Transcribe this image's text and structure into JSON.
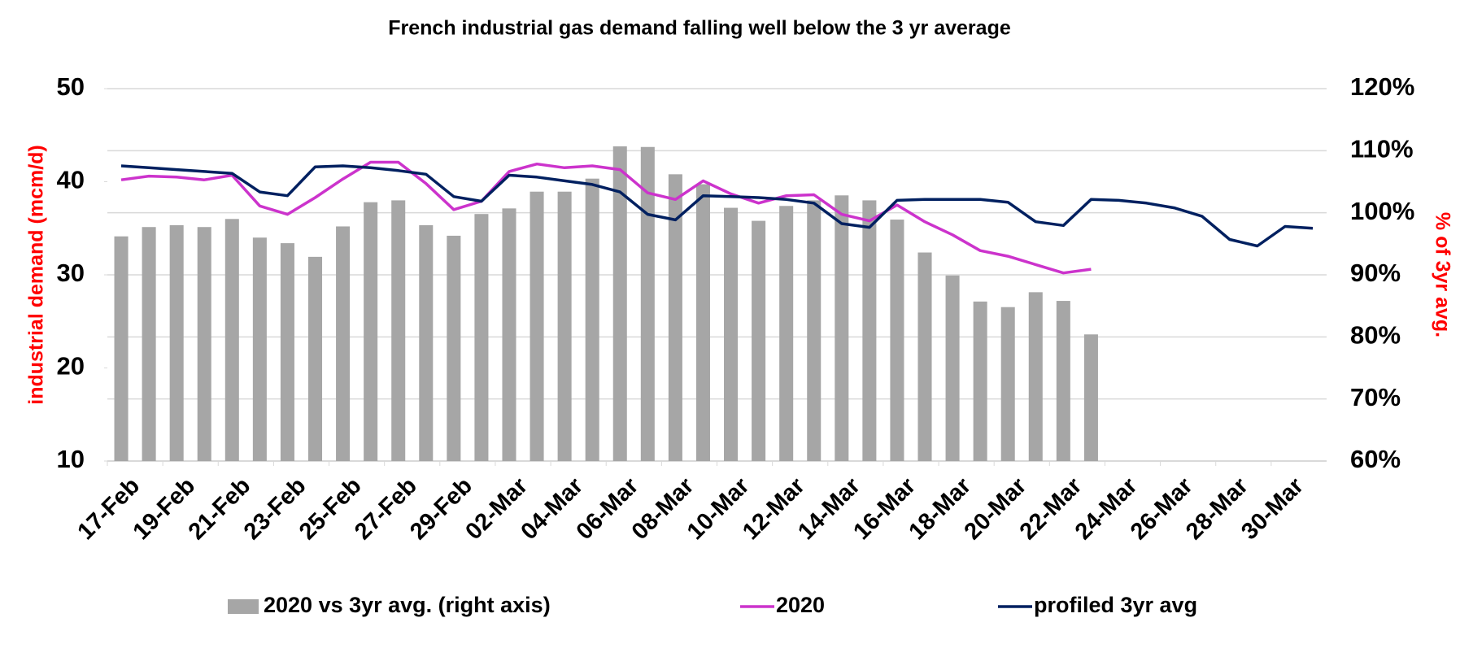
{
  "chart_data": {
    "type": "bar_line",
    "title": "French industrial gas demand falling well below the 3 yr average",
    "y_label": "industrial demand (mcm/d)",
    "y2_label": "% of 3yr avg.",
    "categories": [
      "17-Feb",
      null,
      "19-Feb",
      null,
      "21-Feb",
      null,
      "23-Feb",
      null,
      "25-Feb",
      null,
      "27-Feb",
      null,
      "29-Feb",
      null,
      "02-Mar",
      null,
      "04-Mar",
      null,
      "06-Mar",
      null,
      "08-Mar",
      null,
      "10-Mar",
      null,
      "12-Mar",
      null,
      "14-Mar",
      null,
      "16-Mar",
      null,
      "18-Mar",
      null,
      "20-Mar",
      null,
      "22-Mar",
      null,
      "24-Mar",
      null,
      "26-Mar",
      null,
      "28-Mar",
      null,
      "30-Mar",
      null
    ],
    "series": [
      {
        "name": "2020 vs 3yr avg. (right axis)",
        "type": "bar",
        "axis": "y2",
        "color": "#a6a6a6",
        "values": [
          96.2,
          97.7,
          98,
          97.7,
          99,
          96,
          95.1,
          92.9,
          97.8,
          101.7,
          102,
          98,
          96.3,
          99.8,
          100.7,
          103.4,
          103.4,
          105.5,
          110.7,
          110.6,
          106.2,
          104.6,
          100.8,
          98.7,
          101.1,
          102,
          102.8,
          102,
          98.9,
          93.6,
          89.9,
          85.7,
          84.8,
          87.2,
          85.8,
          80.4,
          null,
          null,
          null,
          null,
          null,
          null,
          null,
          null
        ]
      },
      {
        "name": "2020",
        "type": "line",
        "axis": "y",
        "color": "#cc33cc",
        "values": [
          40.2,
          40.6,
          40.5,
          40.2,
          40.7,
          37.4,
          36.5,
          38.3,
          40.3,
          42.1,
          42.1,
          39.8,
          37,
          37.9,
          41.1,
          41.9,
          41.5,
          41.7,
          41.3,
          38.8,
          38.1,
          40.1,
          38.7,
          37.7,
          38.5,
          38.6,
          36.5,
          35.8,
          37.5,
          35.7,
          34.3,
          32.6,
          32,
          31.1,
          30.2,
          30.6,
          null,
          null,
          null,
          null,
          null,
          null,
          null,
          null
        ]
      },
      {
        "name": "profiled 3yr avg",
        "type": "line",
        "axis": "y",
        "color": "#002060",
        "values": [
          41.7,
          41.5,
          41.3,
          41.1,
          40.9,
          38.9,
          38.5,
          41.6,
          41.7,
          41.5,
          41.2,
          40.8,
          38.4,
          37.9,
          40.7,
          40.5,
          40.1,
          39.7,
          38.9,
          36.5,
          35.9,
          38.5,
          38.4,
          38.3,
          38.1,
          37.7,
          35.5,
          35.1,
          38,
          38.1,
          38.1,
          38.1,
          37.8,
          35.7,
          35.3,
          38.1,
          38,
          37.7,
          37.2,
          36.3,
          33.8,
          33.1,
          35.2,
          35
        ]
      }
    ],
    "ylim": [
      10,
      50
    ],
    "yticks": [
      10,
      20,
      30,
      40,
      50
    ],
    "y2lim": [
      60,
      120
    ],
    "y2ticks": [
      {
        "value": 60,
        "label": "60%"
      },
      {
        "value": 70,
        "label": "70%"
      },
      {
        "value": 80,
        "label": "80%"
      },
      {
        "value": 90,
        "label": "90%"
      },
      {
        "value": 100,
        "label": "100%"
      },
      {
        "value": 110,
        "label": "110%"
      },
      {
        "value": 120,
        "label": "120%"
      }
    ],
    "grid": true,
    "legend": "bottom"
  }
}
